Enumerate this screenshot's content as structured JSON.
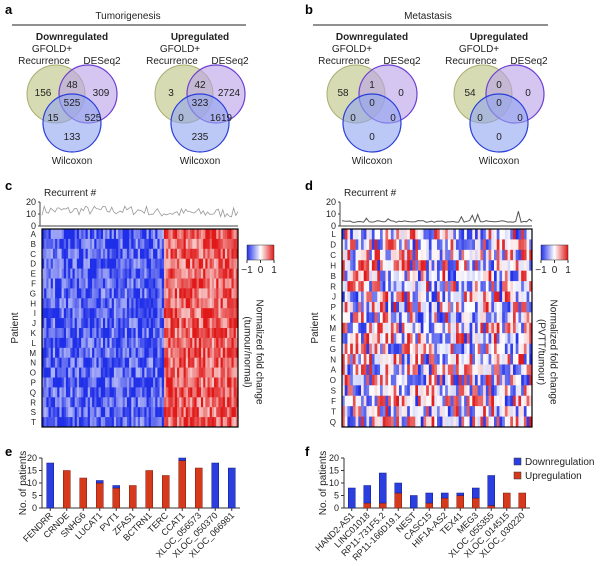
{
  "panels": {
    "a": "a",
    "b": "b",
    "c": "c",
    "d": "d",
    "e": "e",
    "f": "f"
  },
  "venn_sets": {
    "g1": "GFOLD+",
    "g2": "Recurrence",
    "d": "DESeq2",
    "w": "Wilcoxon"
  },
  "colors": {
    "green": "#c9cf9a",
    "purple": "#b8a0e8",
    "blue": "#8fa3f0",
    "up": "#d63a1c",
    "down": "#2b3fe0",
    "heat_low": "#1f2ee8",
    "heat_high": "#e01818",
    "line": "#666666"
  },
  "chart_data": [
    {
      "type": "venn",
      "group": "Tumorigenesis",
      "title": "Downregulated",
      "regions": {
        "only_g": 156,
        "only_d": 309,
        "only_w": 133,
        "gd": 48,
        "gw": 15,
        "dw": 525,
        "gdw": 525
      }
    },
    {
      "type": "venn",
      "group": "Tumorigenesis",
      "title": "Upregulated",
      "regions": {
        "only_g": 3,
        "only_d": 2724,
        "only_w": 235,
        "gd": 42,
        "gw": 0,
        "dw": 1619,
        "gdw": 323
      }
    },
    {
      "type": "venn",
      "group": "Metastasis",
      "title": "Downregulated",
      "regions": {
        "only_g": 58,
        "only_d": 0,
        "only_w": 0,
        "gd": 1,
        "gw": 0,
        "dw": 0,
        "gdw": 0
      }
    },
    {
      "type": "venn",
      "group": "Metastasis",
      "title": "Upregulated",
      "regions": {
        "only_g": 54,
        "only_d": 0,
        "only_w": 0,
        "gd": 0,
        "gw": 0,
        "dw": 0,
        "gdw": 0
      }
    },
    {
      "type": "heatmap",
      "top_label": "Recurrent #",
      "top_yticks": [
        "0",
        "10",
        "20"
      ],
      "ylabel": "Patient",
      "rows": [
        "A",
        "B",
        "C",
        "D",
        "E",
        "F",
        "G",
        "H",
        "I",
        "J",
        "K",
        "L",
        "M",
        "N",
        "O",
        "P",
        "Q",
        "R",
        "S",
        "T"
      ],
      "colorbar": {
        "ticks": [
          "−1",
          "0",
          "1"
        ],
        "label1": "Normalized fold change",
        "label2": "(tumour/normal)",
        "range": [
          -1,
          1
        ]
      }
    },
    {
      "type": "heatmap",
      "top_label": "Recurrent #",
      "top_yticks": [
        "0",
        "10",
        "20"
      ],
      "ylabel": "Patient",
      "rows": [
        "L",
        "D",
        "C",
        "H",
        "B",
        "R",
        "J",
        "P",
        "K",
        "M",
        "E",
        "G",
        "N",
        "A",
        "O",
        "S",
        "F",
        "T",
        "Q"
      ],
      "colorbar": {
        "ticks": [
          "−1",
          "0",
          "1"
        ],
        "label1": "Normalized fold change",
        "label2": "(PVTT/tumour)",
        "range": [
          -1,
          1
        ]
      }
    },
    {
      "type": "bar",
      "stacked": true,
      "ylabel": "No. of patients",
      "ylim": [
        0,
        20
      ],
      "yticks": [
        "0",
        "5",
        "10",
        "15",
        "20"
      ],
      "categories": [
        "FENDRR",
        "CRNDE",
        "SNHG6",
        "LUCAT1",
        "PVT1",
        "ZFAS1",
        "BCTRN1",
        "TERC",
        "CCAT1",
        "XLOC_056573",
        "XLOC_050370",
        "XLOC_066981"
      ],
      "series": [
        {
          "name": "Upregulation",
          "values": [
            0,
            15,
            12,
            10,
            8,
            9,
            15,
            13,
            19,
            16,
            0,
            0
          ]
        },
        {
          "name": "Downregulation",
          "values": [
            18,
            0,
            0,
            1,
            1,
            0,
            0,
            0,
            1,
            0,
            18,
            16
          ]
        }
      ]
    },
    {
      "type": "bar",
      "stacked": true,
      "ylabel": "No. of patients",
      "ylim": [
        0,
        20
      ],
      "yticks": [
        "0",
        "5",
        "10",
        "15",
        "20"
      ],
      "legend": "top-right",
      "categories": [
        "HAND2-AS1",
        "LINC01018",
        "RP11-731F5.2",
        "RP11-166D19.1",
        "NEST",
        "CASC15",
        "HIF1A-AS2",
        "TEX41",
        "MEG3",
        "XLOC_055355",
        "XLOC_014515",
        "XLOC_030220"
      ],
      "series": [
        {
          "name": "Upregulation",
          "values": [
            0,
            2,
            2,
            6,
            0,
            2,
            4,
            5,
            4,
            1,
            6,
            6
          ]
        },
        {
          "name": "Downregulation",
          "values": [
            8,
            7,
            12,
            4,
            5,
            4,
            2,
            1,
            4,
            12,
            0,
            0
          ]
        }
      ]
    }
  ]
}
